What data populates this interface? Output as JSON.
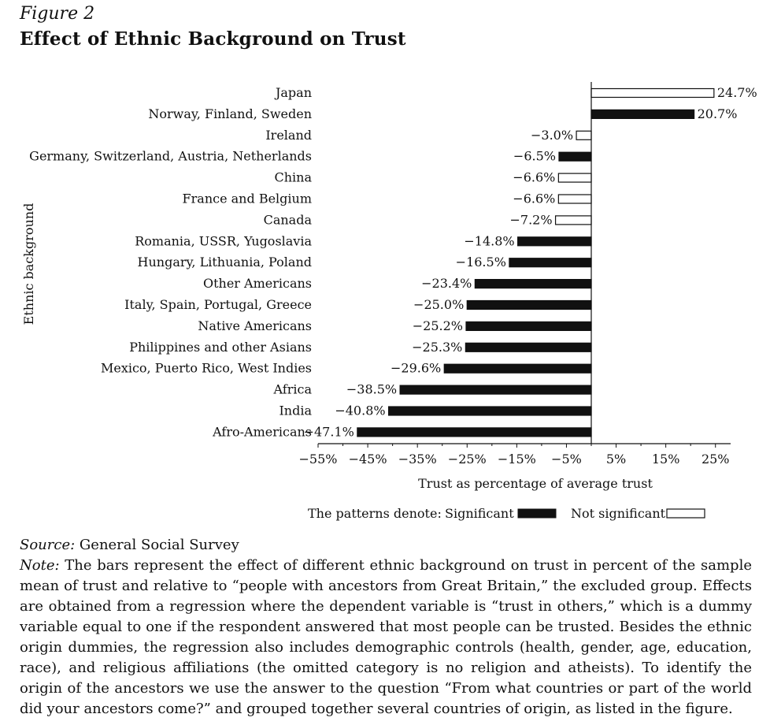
{
  "figure": {
    "label": "Figure 2",
    "title": "Effect of Ethnic Background on Trust"
  },
  "chart_data": {
    "type": "bar",
    "orientation": "horizontal",
    "ylabel": "Ethnic background",
    "xlabel": "Trust as percentage of average trust",
    "xlim": [
      -55,
      30
    ],
    "xticks": [
      -55,
      -45,
      -35,
      -25,
      -15,
      -5,
      5,
      15,
      25
    ],
    "xtick_labels": [
      "−55%",
      "−45%",
      "−35%",
      "−25%",
      "−15%",
      "−5%",
      "5%",
      "15%",
      "25%"
    ],
    "categories": [
      "Japan",
      "Norway, Finland, Sweden",
      "Ireland",
      "Germany, Switzerland, Austria, Netherlands",
      "China",
      "France and Belgium",
      "Canada",
      "Romania, USSR, Yugoslavia",
      "Hungary, Lithuania, Poland",
      "Other Americans",
      "Italy, Spain, Portugal, Greece",
      "Native Americans",
      "Philippines and other Asians",
      "Mexico, Puerto Rico, West Indies",
      "Africa",
      "India",
      "Afro-Americans"
    ],
    "values": [
      24.7,
      20.7,
      -3.0,
      -6.5,
      -6.6,
      -6.6,
      -7.2,
      -14.8,
      -16.5,
      -23.4,
      -25.0,
      -25.2,
      -25.3,
      -29.6,
      -38.5,
      -40.8,
      -47.1
    ],
    "value_labels": [
      "24.7%",
      "20.7%",
      "−3.0%",
      "−6.5%",
      "−6.6%",
      "−6.6%",
      "−7.2%",
      "−14.8%",
      "−16.5%",
      "−23.4%",
      "−25.0%",
      "−25.2%",
      "−25.3%",
      "−29.6%",
      "−38.5%",
      "−40.8%",
      "−47.1%"
    ],
    "significant": [
      false,
      true,
      false,
      true,
      false,
      false,
      false,
      true,
      true,
      true,
      true,
      true,
      true,
      true,
      true,
      true,
      true
    ],
    "legend": {
      "prefix": "The patterns denote:",
      "significant": "Significant",
      "not_significant": "Not significant"
    },
    "colors": {
      "significant": "#111111",
      "not_significant": "#ffffff",
      "outline": "#111111"
    }
  },
  "source": {
    "lead": "Source:",
    "text": "General Social Survey"
  },
  "note": {
    "lead": "Note:",
    "text": "The bars represent the effect of different ethnic background on trust in percent of the sample mean of trust and relative to “people with ancestors from Great Britain,” the excluded group. Effects are obtained from a regression where the dependent variable is “trust in others,” which is a dummy variable equal to one if the respondent answered that most people can be trusted. Besides the ethnic origin dummies, the regression also includes demographic controls (health, gender, age, education, race), and religious affiliations (the omitted category is no religion and atheists). To identify the origin of the ancestors we use the answer to the question “From what countries or part of the world did your ancestors come?” and grouped together several countries of origin, as listed in the figure."
  }
}
